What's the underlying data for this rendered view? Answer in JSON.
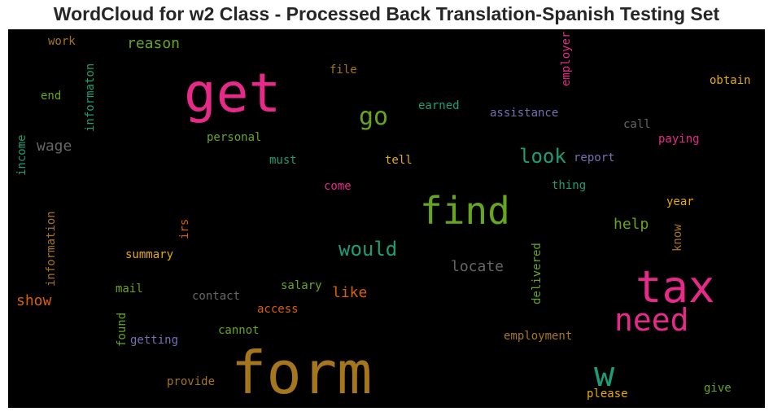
{
  "title": "WordCloud for w2 Class - Processed Back Translation-Spanish Testing Set",
  "colors": {
    "pink": "#e7298a",
    "green": "#66a61e",
    "teal": "#1b9e77",
    "orange": "#d95f02",
    "purple": "#7570b3",
    "gold": "#e6ab02",
    "brown": "#a6761d",
    "gray": "#666666"
  },
  "words": [
    {
      "text": "get",
      "color": "#e7298a",
      "vertical": false
    },
    {
      "text": "tax",
      "color": "#e7298a",
      "vertical": false
    },
    {
      "text": "form",
      "color": "#a6761d",
      "vertical": false
    },
    {
      "text": "find",
      "color": "#66a61e",
      "vertical": false
    },
    {
      "text": "need",
      "color": "#e7298a",
      "vertical": false
    },
    {
      "text": "w",
      "color": "#1b9e77",
      "vertical": false
    },
    {
      "text": "go",
      "color": "#66a61e",
      "vertical": false
    },
    {
      "text": "look",
      "color": "#1b9e77",
      "vertical": false
    },
    {
      "text": "would",
      "color": "#1b9e77",
      "vertical": false
    },
    {
      "text": "locate",
      "color": "#666666",
      "vertical": false
    },
    {
      "text": "reason",
      "color": "#66a61e",
      "vertical": false
    },
    {
      "text": "wage",
      "color": "#666666",
      "vertical": false
    },
    {
      "text": "help",
      "color": "#66a61e",
      "vertical": false
    },
    {
      "text": "like",
      "color": "#d95f02",
      "vertical": false
    },
    {
      "text": "show",
      "color": "#d95f02",
      "vertical": false
    },
    {
      "text": "work",
      "color": "#a6761d",
      "vertical": false
    },
    {
      "text": "file",
      "color": "#a6761d",
      "vertical": false
    },
    {
      "text": "obtain",
      "color": "#e6ab02",
      "vertical": false
    },
    {
      "text": "end",
      "color": "#66a61e",
      "vertical": false
    },
    {
      "text": "earned",
      "color": "#1b9e77",
      "vertical": false
    },
    {
      "text": "assistance",
      "color": "#7570b3",
      "vertical": false
    },
    {
      "text": "call",
      "color": "#666666",
      "vertical": false
    },
    {
      "text": "personal",
      "color": "#66a61e",
      "vertical": false
    },
    {
      "text": "paying",
      "color": "#e7298a",
      "vertical": false
    },
    {
      "text": "must",
      "color": "#1b9e77",
      "vertical": false
    },
    {
      "text": "tell",
      "color": "#e6ab02",
      "vertical": false
    },
    {
      "text": "report",
      "color": "#7570b3",
      "vertical": false
    },
    {
      "text": "thing",
      "color": "#1b9e77",
      "vertical": false
    },
    {
      "text": "come",
      "color": "#e7298a",
      "vertical": false
    },
    {
      "text": "year",
      "color": "#e6ab02",
      "vertical": false
    },
    {
      "text": "summary",
      "color": "#e6ab02",
      "vertical": false
    },
    {
      "text": "mail",
      "color": "#66a61e",
      "vertical": false
    },
    {
      "text": "contact",
      "color": "#666666",
      "vertical": false
    },
    {
      "text": "salary",
      "color": "#66a61e",
      "vertical": false
    },
    {
      "text": "access",
      "color": "#d95f02",
      "vertical": false
    },
    {
      "text": "getting",
      "color": "#7570b3",
      "vertical": false
    },
    {
      "text": "cannot",
      "color": "#66a61e",
      "vertical": false
    },
    {
      "text": "employment",
      "color": "#a6761d",
      "vertical": false
    },
    {
      "text": "provide",
      "color": "#a6761d",
      "vertical": false
    },
    {
      "text": "please",
      "color": "#e6ab02",
      "vertical": false
    },
    {
      "text": "give",
      "color": "#66a61e",
      "vertical": false
    },
    {
      "text": "employer",
      "color": "#e7298a",
      "vertical": true
    },
    {
      "text": "informaton",
      "color": "#1b9e77",
      "vertical": true
    },
    {
      "text": "income",
      "color": "#1b9e77",
      "vertical": true
    },
    {
      "text": "information",
      "color": "#a6761d",
      "vertical": true
    },
    {
      "text": "irs",
      "color": "#d95f02",
      "vertical": true
    },
    {
      "text": "delivered",
      "color": "#66a61e",
      "vertical": true
    },
    {
      "text": "know",
      "color": "#a6761d",
      "vertical": true
    },
    {
      "text": "found",
      "color": "#66a61e",
      "vertical": true
    }
  ]
}
